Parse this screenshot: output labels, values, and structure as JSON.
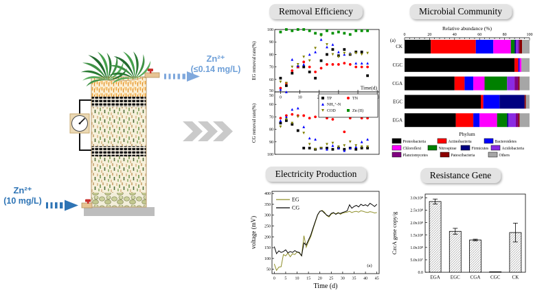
{
  "colors": {
    "outlet_blue": "#6FA0D8",
    "inlet_blue": "#2E74B5",
    "chevron_gray": "#CACACA",
    "title_box_bg": "#E3E3E3"
  },
  "diagram": {
    "inlet": {
      "formula": "Zn²⁺",
      "concentration": "(10 mg/L)",
      "color": "#2E74B5"
    },
    "outlet": {
      "formula": "Zn²⁺",
      "concentration": "(≤0.14 mg/L)",
      "color": "#6FA0D8"
    }
  },
  "panels": {
    "removal": {
      "title": "Removal Efficiency"
    },
    "microbial": {
      "title": "Microbial Community"
    },
    "electricity": {
      "title": "Electricity Production"
    },
    "resistance": {
      "title": "Resistance Gene"
    }
  },
  "chart_data": [
    {
      "id": "removal",
      "type": "scatter",
      "title": "Removal Efficiency",
      "xlabel": "Time(d)",
      "xlim": [
        -3,
        51
      ],
      "xticks": [
        0,
        10,
        20,
        30,
        40,
        50
      ],
      "x_days": [
        0,
        3,
        6,
        9,
        12,
        15,
        18,
        21,
        24,
        27,
        30,
        33,
        36,
        39,
        42,
        45
      ],
      "legend": [
        {
          "label": "TP",
          "color": "#000000",
          "marker": "square"
        },
        {
          "label": "TN",
          "color": "#FF0000",
          "marker": "circle"
        },
        {
          "label": "NH₄⁺-N",
          "color": "#0000FF",
          "marker": "triangle-up"
        },
        {
          "label": "COD",
          "color": "#808000",
          "marker": "triangle-down"
        },
        {
          "label": "Zn (II)",
          "color": "#008F00",
          "marker": "square"
        }
      ],
      "subplots": [
        {
          "ylabel": "EG removal rate(%)",
          "ylim": [
            50,
            100
          ],
          "yticks": [
            50,
            60,
            70,
            80,
            90,
            100
          ],
          "reversed": false,
          "series": [
            {
              "name": "TP",
              "color": "#000000",
              "marker": "square",
              "values": [
                61,
                55,
                65,
                70,
                70,
                66,
                61,
                75,
                80,
                84,
                79,
                84,
                80,
                82,
                82,
                63
              ]
            },
            {
              "name": "TN",
              "color": "#FF0000",
              "marker": "circle",
              "values": [
                53,
                57,
                67,
                70,
                74,
                70,
                66,
                69,
                72,
                72,
                72,
                73,
                72,
                70,
                70,
                70
              ]
            },
            {
              "name": "NH₄⁺-N",
              "color": "#0000FF",
              "marker": "triangle-up",
              "values": [
                52,
                50,
                76,
                71,
                72,
                80,
                82,
                92,
                86,
                88,
                82,
                80,
                81,
                73,
                73,
                73
              ]
            },
            {
              "name": "COD",
              "color": "#808000",
              "marker": "triangle-down",
              "values": [
                58,
                57,
                70,
                72,
                78,
                75,
                85,
                95,
                88,
                80,
                78,
                81,
                80,
                81,
                80,
                81
              ]
            },
            {
              "name": "Zn (II)",
              "color": "#008F00",
              "marker": "square",
              "values": [
                98,
                100,
                99,
                100,
                100,
                99,
                97,
                96,
                99,
                97,
                98,
                97,
                96,
                99,
                99,
                99
              ]
            }
          ]
        },
        {
          "ylabel": "CG removal rate(%)",
          "ylim": [
            50,
            100
          ],
          "yticks": [
            50,
            60,
            70,
            80,
            90,
            100
          ],
          "reversed": true,
          "series": [
            {
              "name": "TP",
              "color": "#000000",
              "marker": "square",
              "values": [
                75,
                73,
                76,
                81,
                95,
                95,
                96,
                95,
                95,
                96,
                95,
                96,
                95,
                96,
                95,
                95
              ]
            },
            {
              "name": "TN",
              "color": "#FF0000",
              "marker": "circle",
              "values": [
                71,
                69,
                68,
                69,
                69,
                71,
                70,
                69,
                71,
                72,
                69,
                82,
                71,
                69,
                71,
                71
              ]
            },
            {
              "name": "NH₄⁺-N",
              "color": "#0000FF",
              "marker": "triangle-up",
              "values": [
                73,
                70,
                64,
                63,
                78,
                87,
                88,
                95,
                96,
                93,
                95,
                97,
                95,
                94,
                90,
                88
              ]
            },
            {
              "name": "COD",
              "color": "#808000",
              "marker": "triangle-down",
              "values": [
                78,
                72,
                75,
                70,
                83,
                92,
                96,
                95,
                92,
                91,
                94,
                93,
                90,
                93,
                94,
                94
              ]
            }
          ]
        }
      ]
    },
    {
      "id": "microbial",
      "type": "stacked-bar-horizontal",
      "title": "Microbial Community",
      "axis_title": "Relative abundance (%)",
      "xlabel": "Phylum",
      "panel_label": "(a)",
      "xlim": [
        0,
        100
      ],
      "xticks": [
        0,
        20,
        40,
        60,
        80,
        100
      ],
      "rows": [
        "CK",
        "CGC",
        "CGA",
        "EGC",
        "EGA"
      ],
      "series": [
        {
          "name": "Proteobacteria",
          "color": "#000000",
          "values": [
            21,
            88,
            40,
            61,
            41
          ]
        },
        {
          "name": "Actinobacteria",
          "color": "#FF0000",
          "values": [
            36,
            3,
            8,
            2,
            14
          ]
        },
        {
          "name": "Bacteroidetes",
          "color": "#0000FF",
          "values": [
            14,
            1,
            7,
            13,
            5
          ]
        },
        {
          "name": "Chloroflexi",
          "color": "#FF00FF",
          "values": [
            14,
            1.5,
            9,
            0,
            14
          ]
        },
        {
          "name": "Nitrospirae",
          "color": "#008000",
          "values": [
            3,
            0,
            18,
            0,
            8
          ]
        },
        {
          "name": "Firmicutes",
          "color": "#000080",
          "values": [
            1,
            0,
            0,
            20,
            1
          ]
        },
        {
          "name": "Acidobacteria",
          "color": "#8A2BE2",
          "values": [
            2,
            0,
            6,
            0,
            6
          ]
        },
        {
          "name": "Planctomycetes",
          "color": "#800080",
          "values": [
            1,
            0,
            3,
            0,
            2
          ]
        },
        {
          "name": "Patescibacteria",
          "color": "#8B0000",
          "values": [
            2,
            0,
            1,
            1,
            1
          ]
        },
        {
          "name": "Others",
          "color": "#A6A6A6",
          "values": [
            6,
            6.5,
            8,
            3,
            8
          ]
        }
      ]
    },
    {
      "id": "electricity",
      "type": "line",
      "title": "Electricity Production",
      "xlabel": "Time (d)",
      "ylabel": "voltage (mV)",
      "panel_label": "(a)",
      "xlim": [
        -1,
        46
      ],
      "xticks": [
        0,
        5,
        10,
        15,
        20,
        25,
        30,
        35,
        40,
        45
      ],
      "ylim": [
        30,
        410
      ],
      "yticks": [
        50,
        100,
        150,
        200,
        250,
        300,
        350,
        400
      ],
      "x_days": [
        0,
        1,
        2,
        3,
        4,
        5,
        6,
        7,
        8,
        9,
        10,
        11,
        12,
        13,
        14,
        15,
        16,
        17,
        18,
        19,
        20,
        21,
        22,
        23,
        24,
        25,
        26,
        27,
        28,
        29,
        30,
        31,
        32,
        33,
        34,
        35,
        36,
        37,
        38,
        39,
        40,
        41,
        42,
        43,
        44,
        45
      ],
      "series": [
        {
          "name": "EG",
          "color": "#8F8F2A",
          "values": [
            75,
            45,
            60,
            62,
            118,
            112,
            125,
            108,
            122,
            118,
            130,
            125,
            112,
            205,
            152,
            178,
            200,
            235,
            268,
            300,
            318,
            322,
            314,
            298,
            292,
            305,
            310,
            306,
            312,
            304,
            310,
            312,
            314,
            318,
            312,
            316,
            318,
            314,
            320,
            318,
            314,
            312,
            316,
            314,
            310,
            312
          ]
        },
        {
          "name": "CG",
          "color": "#000000",
          "values": [
            155,
            122,
            135,
            128,
            132,
            140,
            126,
            132,
            128,
            136,
            130,
            128,
            112,
            172,
            162,
            185,
            208,
            240,
            272,
            302,
            318,
            320,
            310,
            300,
            295,
            308,
            312,
            304,
            310,
            308,
            312,
            316,
            320,
            348,
            332,
            340,
            345,
            338,
            350,
            344,
            348,
            342,
            355,
            348,
            340,
            350
          ]
        }
      ]
    },
    {
      "id": "resistance",
      "type": "bar",
      "title": "Resistance Gene",
      "ylabel": "CzcA gene copy/g",
      "categories": [
        "EGA",
        "EGC",
        "CGA",
        "CGC",
        "CK"
      ],
      "values": [
        285000000,
        165000000,
        130000000,
        2000000,
        160000000
      ],
      "errors": [
        10000000,
        12000000,
        3000000,
        0,
        38000000
      ],
      "ylim": [
        0,
        315000000
      ],
      "yticks": [
        0,
        50000000,
        100000000,
        150000000,
        200000000,
        250000000,
        300000000
      ],
      "ytick_labels": [
        "0.0",
        "5.0x10⁷",
        "1.0x10⁸",
        "1.5x10⁸",
        "2.0x10⁸",
        "2.5x10⁸",
        "3.0x10⁸"
      ],
      "bar_style": "hatched"
    }
  ]
}
